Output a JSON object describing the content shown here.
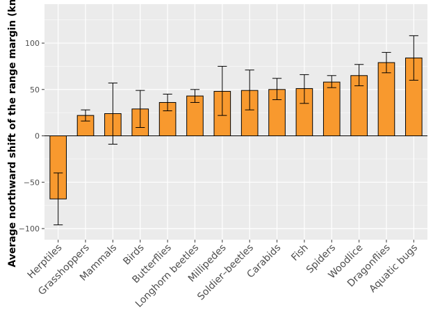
{
  "chart_data": {
    "type": "bar",
    "title": "",
    "xlabel": "",
    "ylabel": "Average northward shift of the range margin (km)",
    "ylim": [
      -112,
      142
    ],
    "yticks": [
      -100,
      -50,
      0,
      50,
      100
    ],
    "grid": true,
    "categories": [
      "Herptiles",
      "Grasshoppers",
      "Mammals",
      "Birds",
      "Butterflies",
      "Longhorn beetles",
      "Millipedes",
      "Soldier–beetles",
      "Carabids",
      "Fish",
      "Spiders",
      "Woodlice",
      "Dragonflies",
      "Aquatic bugs"
    ],
    "values": [
      -68,
      22,
      24,
      29,
      36,
      43,
      48,
      49,
      50,
      51,
      58,
      65,
      79,
      84
    ],
    "error_low": [
      -96,
      16,
      -9,
      9,
      27,
      36,
      22,
      28,
      39,
      35,
      52,
      54,
      68,
      60
    ],
    "error_high": [
      -40,
      28,
      57,
      49,
      45,
      50,
      75,
      71,
      62,
      66,
      65,
      77,
      90,
      108
    ],
    "colors": {
      "bar_fill": "#f8992e",
      "bar_stroke": "#000000",
      "panel_bg": "#ebebeb",
      "grid": "#ffffff",
      "text": "#4d4d4d"
    }
  }
}
